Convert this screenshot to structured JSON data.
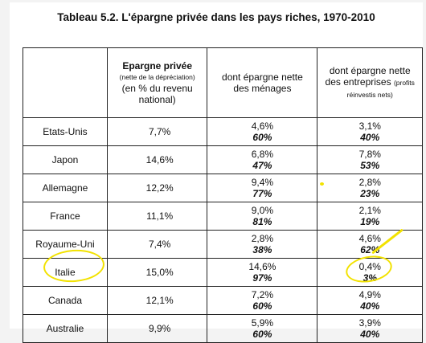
{
  "title": "Tableau 5.2. L'épargne privée dans les pays riches, 1970-2010",
  "headers": {
    "col1_line1": "Epargne privée",
    "col1_small": "(nette de la dépréciation)",
    "col1_line3": "(en % du revenu",
    "col1_line4": "national)",
    "col2_line1": "dont épargne nette",
    "col2_line2": "des ménages",
    "col3_line1": "dont épargne nette",
    "col3_line2": "des entreprises",
    "col3_small": "(profits réinvestis nets)"
  },
  "rows": [
    {
      "country": "Etats-Unis",
      "epargne": "7,7%",
      "menages_val": "4,6%",
      "menages_pct": "60%",
      "entreprises_val": "3,1%",
      "entreprises_pct": "40%"
    },
    {
      "country": "Japon",
      "epargne": "14,6%",
      "menages_val": "6,8%",
      "menages_pct": "47%",
      "entreprises_val": "7,8%",
      "entreprises_pct": "53%"
    },
    {
      "country": "Allemagne",
      "epargne": "12,2%",
      "menages_val": "9,4%",
      "menages_pct": "77%",
      "entreprises_val": "2,8%",
      "entreprises_pct": "23%"
    },
    {
      "country": "France",
      "epargne": "11,1%",
      "menages_val": "9,0%",
      "menages_pct": "81%",
      "entreprises_val": "2,1%",
      "entreprises_pct": "19%"
    },
    {
      "country": "Royaume-Uni",
      "epargne": "7,4%",
      "menages_val": "2,8%",
      "menages_pct": "38%",
      "entreprises_val": "4,6%",
      "entreprises_pct": "62%"
    },
    {
      "country": "Italie",
      "epargne": "15,0%",
      "menages_val": "14,6%",
      "menages_pct": "97%",
      "entreprises_val": "0,4%",
      "entreprises_pct": "3%"
    },
    {
      "country": "Canada",
      "epargne": "12,1%",
      "menages_val": "7,2%",
      "menages_pct": "60%",
      "entreprises_val": "4,9%",
      "entreprises_pct": "40%"
    },
    {
      "country": "Australie",
      "epargne": "9,9%",
      "menages_val": "5,9%",
      "menages_pct": "60%",
      "entreprises_val": "3,9%",
      "entreprises_pct": "40%"
    }
  ],
  "colors": {
    "highlighter": "#f2e200"
  }
}
